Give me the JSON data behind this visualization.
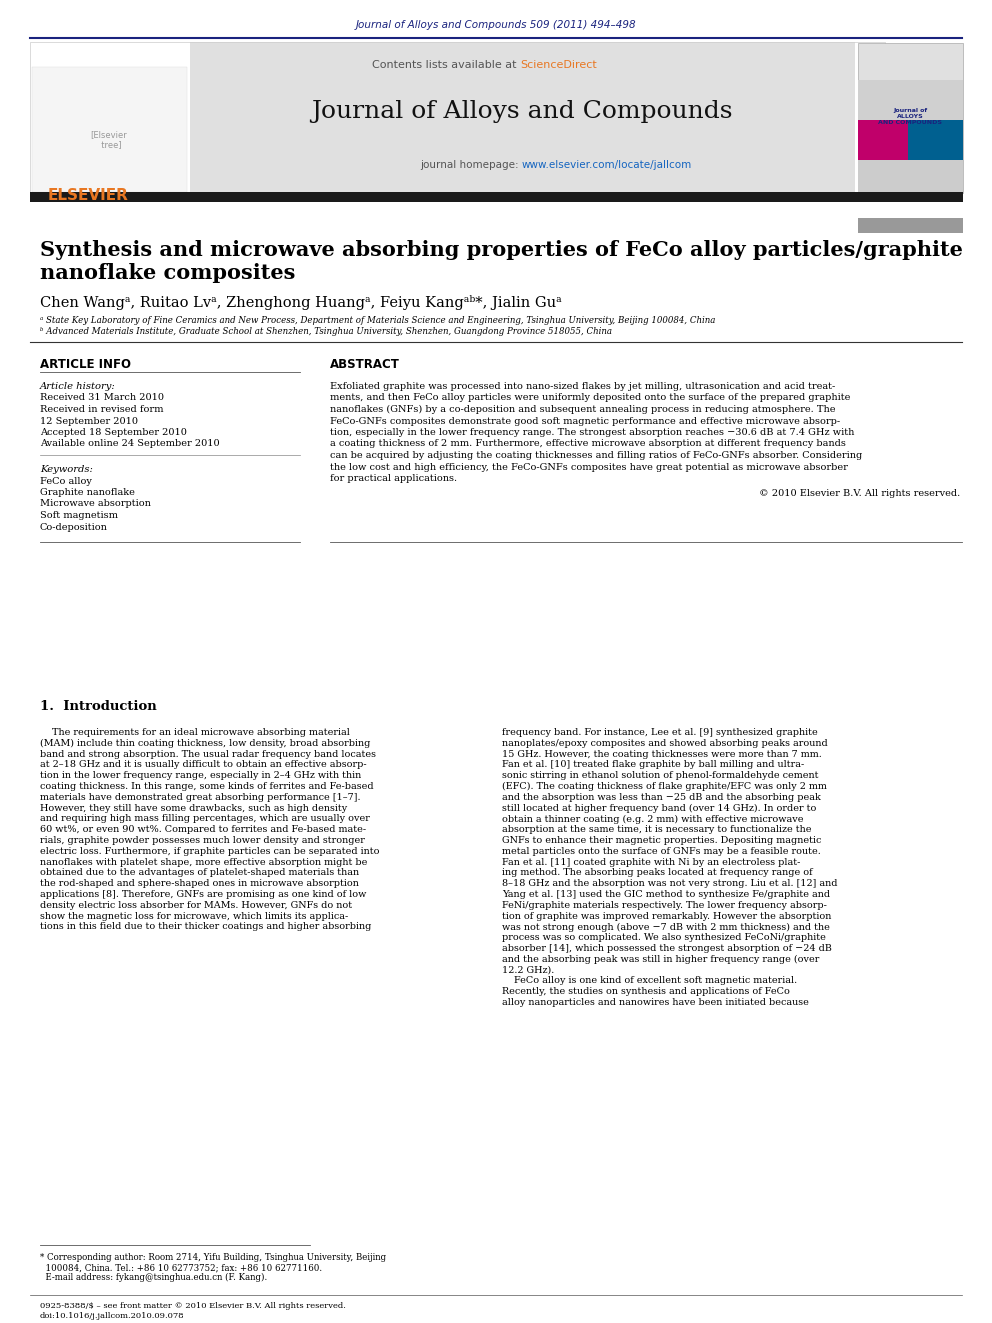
{
  "journal_ref": "Journal of Alloys and Compounds 509 (2011) 494–498",
  "journal_ref_color": "#1a237e",
  "sciencedirect_color": "#e87722",
  "journal_name": "Journal of Alloys and Compounds",
  "journal_homepage_url": "www.elsevier.com/locate/jallcom",
  "journal_homepage_color": "#1565c0",
  "header_bg": "#e0e0e0",
  "dark_bar_color": "#1a1a1a",
  "title_line1": "Synthesis and microwave absorbing properties of FeCo alloy particles/graphite",
  "title_line2": "nanoflake composites",
  "authors": "Chen Wangᵃ, Ruitao Lvᵃ, Zhenghong Huangᵃ, Feiyu Kangᵃᵇ*, Jialin Guᵃ",
  "affiliation_a": "ᵃ State Key Laboratory of Fine Ceramics and New Process, Department of Materials Science and Engineering, Tsinghua University, Beijing 100084, China",
  "affiliation_b": "ᵇ Advanced Materials Institute, Graduate School at Shenzhen, Tsinghua University, Shenzhen, Guangdong Province 518055, China",
  "article_info_header": "ARTICLE INFO",
  "abstract_header": "ABSTRACT",
  "article_history_label": "Article history:",
  "history_lines": [
    "Received 31 March 2010",
    "Received in revised form",
    "12 September 2010",
    "Accepted 18 September 2010",
    "Available online 24 September 2010"
  ],
  "keywords_label": "Keywords:",
  "keywords": [
    "FeCo alloy",
    "Graphite nanoflake",
    "Microwave absorption",
    "Soft magnetism",
    "Co-deposition"
  ],
  "abstract_lines": [
    "Exfoliated graphite was processed into nano-sized flakes by jet milling, ultrasonication and acid treat-",
    "ments, and then FeCo alloy particles were uniformly deposited onto the surface of the prepared graphite",
    "nanoflakes (GNFs) by a co-deposition and subsequent annealing process in reducing atmosphere. The",
    "FeCo-GNFs composites demonstrate good soft magnetic performance and effective microwave absorp-",
    "tion, especially in the lower frequency range. The strongest absorption reaches −30.6 dB at 7.4 GHz with",
    "a coating thickness of 2 mm. Furthermore, effective microwave absorption at different frequency bands",
    "can be acquired by adjusting the coating thicknesses and filling ratios of FeCo-GNFs absorber. Considering",
    "the low cost and high efficiency, the FeCo-GNFs composites have great potential as microwave absorber",
    "for practical applications."
  ],
  "copyright": "© 2010 Elsevier B.V. All rights reserved.",
  "section1_title": "1.  Introduction",
  "intro_left_lines": [
    "    The requirements for an ideal microwave absorbing material",
    "(MAM) include thin coating thickness, low density, broad absorbing",
    "band and strong absorption. The usual radar frequency band locates",
    "at 2–18 GHz and it is usually difficult to obtain an effective absorp-",
    "tion in the lower frequency range, especially in 2–4 GHz with thin",
    "coating thickness. In this range, some kinds of ferrites and Fe-based",
    "materials have demonstrated great absorbing performance [1–7].",
    "However, they still have some drawbacks, such as high density",
    "and requiring high mass filling percentages, which are usually over",
    "60 wt%, or even 90 wt%. Compared to ferrites and Fe-based mate-",
    "rials, graphite powder possesses much lower density and stronger",
    "electric loss. Furthermore, if graphite particles can be separated into",
    "nanoflakes with platelet shape, more effective absorption might be",
    "obtained due to the advantages of platelet-shaped materials than",
    "the rod-shaped and sphere-shaped ones in microwave absorption",
    "applications [8]. Therefore, GNFs are promising as one kind of low",
    "density electric loss absorber for MAMs. However, GNFs do not",
    "show the magnetic loss for microwave, which limits its applica-",
    "tions in this field due to their thicker coatings and higher absorbing"
  ],
  "intro_right_lines": [
    "frequency band. For instance, Lee et al. [9] synthesized graphite",
    "nanoplates/epoxy composites and showed absorbing peaks around",
    "15 GHz. However, the coating thicknesses were more than 7 mm.",
    "Fan et al. [10] treated flake graphite by ball milling and ultra-",
    "sonic stirring in ethanol solution of phenol-formaldehyde cement",
    "(EFC). The coating thickness of flake graphite/EFC was only 2 mm",
    "and the absorption was less than −25 dB and the absorbing peak",
    "still located at higher frequency band (over 14 GHz). In order to",
    "obtain a thinner coating (e.g. 2 mm) with effective microwave",
    "absorption at the same time, it is necessary to functionalize the",
    "GNFs to enhance their magnetic properties. Depositing magnetic",
    "metal particles onto the surface of GNFs may be a feasible route.",
    "Fan et al. [11] coated graphite with Ni by an electroless plat-",
    "ing method. The absorbing peaks located at frequency range of",
    "8–18 GHz and the absorption was not very strong. Liu et al. [12] and",
    "Yang et al. [13] used the GIC method to synthesize Fe/graphite and",
    "FeNi/graphite materials respectively. The lower frequency absorp-",
    "tion of graphite was improved remarkably. However the absorption",
    "was not strong enough (above −7 dB with 2 mm thickness) and the",
    "process was so complicated. We also synthesized FeCoNi/graphite",
    "absorber [14], which possessed the strongest absorption of −24 dB",
    "and the absorbing peak was still in higher frequency range (over",
    "12.2 GHz).",
    "    FeCo alloy is one kind of excellent soft magnetic material.",
    "Recently, the studies on synthesis and applications of FeCo",
    "alloy nanoparticles and nanowires have been initiated because"
  ],
  "footnote_lines": [
    "* Corresponding author: Room 2714, Yifu Building, Tsinghua University, Beijing",
    "  100084, China. Tel.: +86 10 62773752; fax: +86 10 62771160.",
    "  E-mail address: fykang@tsinghua.edu.cn (F. Kang)."
  ],
  "footer_lines": [
    "0925-8388/$ – see front matter © 2010 Elsevier B.V. All rights reserved.",
    "doi:10.1016/j.jallcom.2010.09.078"
  ],
  "page_bg": "#ffffff"
}
